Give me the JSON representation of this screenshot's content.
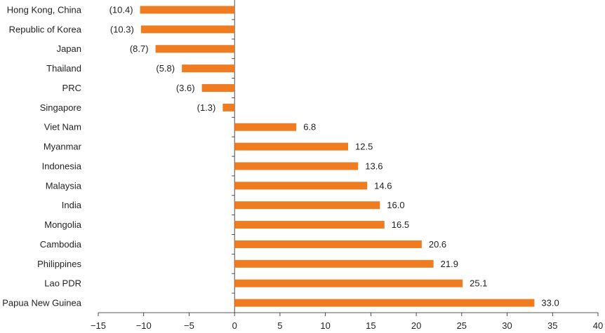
{
  "chart_data": {
    "type": "bar",
    "orientation": "horizontal",
    "title": "",
    "xlabel": "",
    "ylabel": "",
    "xlim": [
      -15,
      40
    ],
    "xticks": [
      -15,
      -10,
      -5,
      0,
      5,
      10,
      15,
      20,
      25,
      30,
      35,
      40
    ],
    "xtick_labels": [
      "−15",
      "−10",
      "−5",
      "0",
      "5",
      "10",
      "15",
      "20",
      "25",
      "30",
      "35",
      "40"
    ],
    "grid": false,
    "bar_color": "#f07c22",
    "categories": [
      "Hong Kong, China",
      "Republic of Korea",
      "Japan",
      "Thailand",
      "PRC",
      "Singapore",
      "Viet Nam",
      "Myanmar",
      "Indonesia",
      "Malaysia",
      "India",
      "Mongolia",
      "Cambodia",
      "Philippines",
      "Lao PDR",
      "Papua New Guinea"
    ],
    "values": [
      -10.4,
      -10.3,
      -8.7,
      -5.8,
      -3.6,
      -1.3,
      6.8,
      12.5,
      13.6,
      14.6,
      16.0,
      16.5,
      20.6,
      21.9,
      25.1,
      33.0
    ],
    "value_labels": [
      "(10.4)",
      "(10.3)",
      "(8.7)",
      "(5.8)",
      "(3.6)",
      "(1.3)",
      "6.8",
      "12.5",
      "13.6",
      "14.6",
      "16.0",
      "16.5",
      "20.6",
      "21.9",
      "25.1",
      "33.0"
    ]
  }
}
